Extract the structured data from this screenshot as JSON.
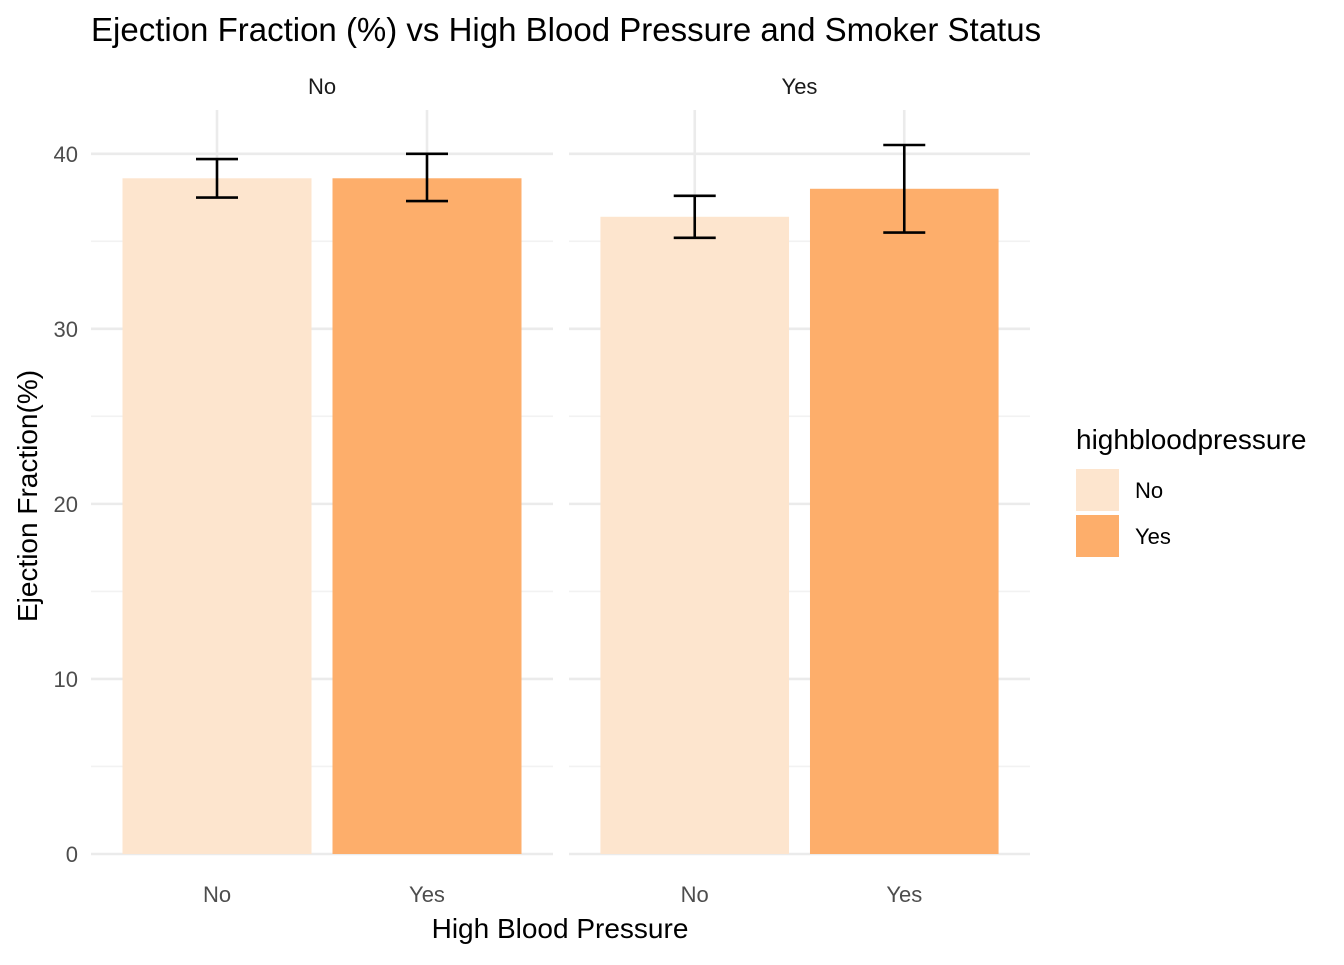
{
  "chart_data": {
    "type": "bar",
    "title": "Ejection Fraction (%) vs High Blood Pressure and Smoker Status",
    "xlabel": "High Blood Pressure",
    "ylabel": "Ejection Fraction(%)",
    "ylim": [
      0,
      42.5
    ],
    "y_ticks": [
      0,
      10,
      20,
      30,
      40
    ],
    "y_tick_labels": [
      "0",
      "10",
      "20",
      "30",
      "40"
    ],
    "categories": [
      "No",
      "Yes"
    ],
    "grid": true,
    "legend": {
      "title": "highbloodpressure",
      "position": "right",
      "entries": [
        {
          "label": "No",
          "color": "#FDE5CE"
        },
        {
          "label": "Yes",
          "color": "#FDAE6B"
        }
      ]
    },
    "facets": [
      {
        "label": "No",
        "bars": [
          {
            "category": "No",
            "value": 38.6,
            "err_low": 37.5,
            "err_high": 39.7
          },
          {
            "category": "Yes",
            "value": 38.6,
            "err_low": 37.3,
            "err_high": 40.0
          }
        ]
      },
      {
        "label": "Yes",
        "bars": [
          {
            "category": "No",
            "value": 36.4,
            "err_low": 35.2,
            "err_high": 37.6
          },
          {
            "category": "Yes",
            "value": 38.0,
            "err_low": 35.5,
            "err_high": 40.5
          }
        ]
      }
    ]
  }
}
